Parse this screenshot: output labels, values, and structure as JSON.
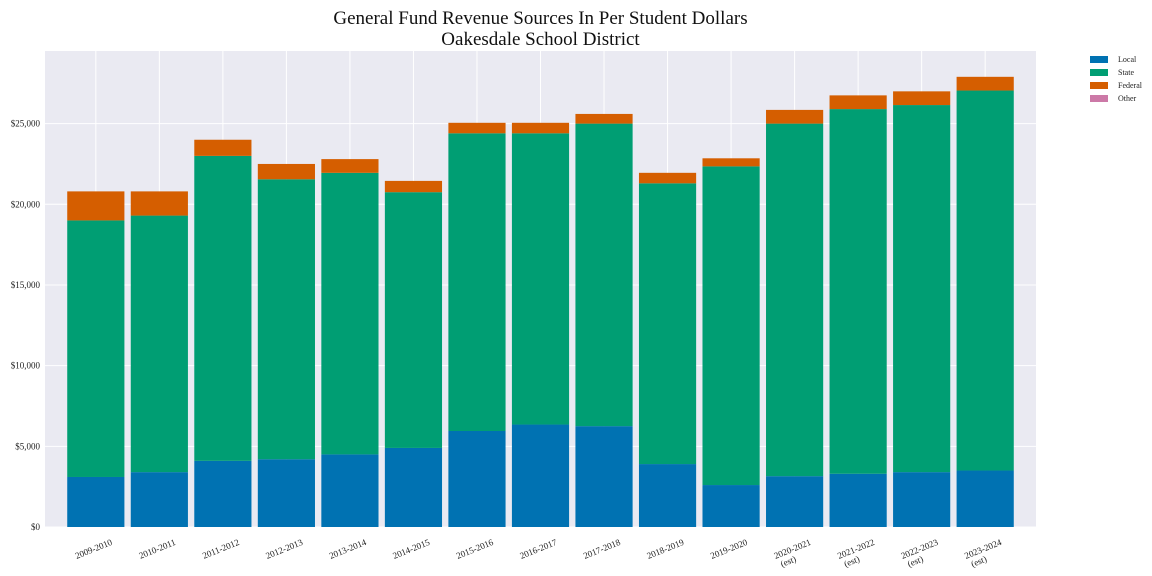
{
  "chart_data": {
    "type": "bar",
    "stacked": true,
    "title": "General Fund Revenue Sources In Per Student Dollars",
    "subtitle": "Oakesdale School District",
    "xlabel": "",
    "ylabel": "",
    "ylim": [
      0,
      29500
    ],
    "yticks": [
      0,
      5000,
      10000,
      15000,
      20000,
      25000
    ],
    "ytick_labels": [
      "$0",
      "$5,000",
      "$10,000",
      "$15,000",
      "$20,000",
      "$25,000"
    ],
    "grid": true,
    "legend_position": "top-right outside",
    "categories": [
      [
        "2009-2010"
      ],
      [
        "2010-2011"
      ],
      [
        "2011-2012"
      ],
      [
        "2012-2013"
      ],
      [
        "2013-2014"
      ],
      [
        "2014-2015"
      ],
      [
        "2015-2016"
      ],
      [
        "2016-2017"
      ],
      [
        "2017-2018"
      ],
      [
        "2018-2019"
      ],
      [
        "2019-2020"
      ],
      [
        "2020-2021",
        "(est)"
      ],
      [
        "2021-2022",
        "(est)"
      ],
      [
        "2022-2023",
        "(est)"
      ],
      [
        "2023-2024",
        "(est)"
      ]
    ],
    "series": [
      {
        "name": "Local",
        "color": "#0072b2",
        "values": [
          3100,
          3400,
          4100,
          4200,
          4500,
          4900,
          5950,
          6350,
          6250,
          3900,
          2600,
          3150,
          3300,
          3400,
          3500
        ]
      },
      {
        "name": "State",
        "color": "#009e73",
        "values": [
          15900,
          15900,
          18900,
          17350,
          17450,
          15850,
          18450,
          18050,
          18750,
          17400,
          19750,
          21850,
          22600,
          22750,
          23550
        ]
      },
      {
        "name": "Federal",
        "color": "#d55e00",
        "values": [
          1800,
          1500,
          1000,
          950,
          850,
          700,
          650,
          650,
          600,
          650,
          500,
          850,
          850,
          850,
          850
        ]
      },
      {
        "name": "Other",
        "color": "#cc79a7",
        "values": [
          0,
          0,
          0,
          0,
          0,
          0,
          0,
          0,
          0,
          0,
          0,
          0,
          0,
          0,
          0
        ]
      }
    ]
  }
}
